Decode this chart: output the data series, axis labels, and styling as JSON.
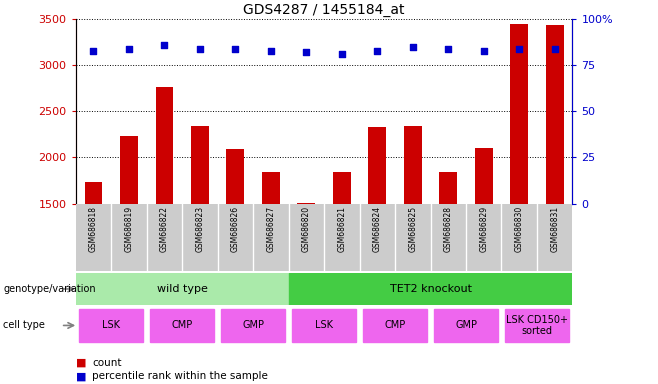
{
  "title": "GDS4287 / 1455184_at",
  "samples": [
    "GSM686818",
    "GSM686819",
    "GSM686822",
    "GSM686823",
    "GSM686826",
    "GSM686827",
    "GSM686820",
    "GSM686821",
    "GSM686824",
    "GSM686825",
    "GSM686828",
    "GSM686829",
    "GSM686830",
    "GSM686831"
  ],
  "counts": [
    1730,
    2230,
    2760,
    2340,
    2090,
    1840,
    1510,
    1840,
    2330,
    2340,
    1840,
    2100,
    3450,
    3440
  ],
  "percentile_ranks": [
    83,
    84,
    86,
    84,
    84,
    83,
    82,
    81,
    83,
    85,
    84,
    83,
    84,
    84
  ],
  "ylim_left": [
    1500,
    3500
  ],
  "ylim_right": [
    0,
    100
  ],
  "yticks_left": [
    1500,
    2000,
    2500,
    3000,
    3500
  ],
  "yticks_right": [
    0,
    25,
    50,
    75,
    100
  ],
  "yticklabels_right": [
    "0",
    "25",
    "50",
    "75",
    "100%"
  ],
  "bar_color": "#cc0000",
  "scatter_color": "#0000cc",
  "grid_color": "#000000",
  "title_fontsize": 10,
  "axis_color_left": "#cc0000",
  "axis_color_right": "#0000cc",
  "sample_band_color": "#cccccc",
  "genotype_groups": [
    {
      "label": "wild type",
      "start": 0,
      "end": 6,
      "color": "#aaeaaa"
    },
    {
      "label": "TET2 knockout",
      "start": 6,
      "end": 14,
      "color": "#44cc44"
    }
  ],
  "cell_type_groups": [
    {
      "label": "LSK",
      "start": 0,
      "end": 2
    },
    {
      "label": "CMP",
      "start": 2,
      "end": 4
    },
    {
      "label": "GMP",
      "start": 4,
      "end": 6
    },
    {
      "label": "LSK",
      "start": 6,
      "end": 8
    },
    {
      "label": "CMP",
      "start": 8,
      "end": 10
    },
    {
      "label": "GMP",
      "start": 10,
      "end": 12
    },
    {
      "label": "LSK CD150+\nsorted",
      "start": 12,
      "end": 14
    }
  ],
  "cell_type_color": "#ee66ee",
  "legend_bar_label": "count",
  "legend_scatter_label": "percentile rank within the sample",
  "bar_width": 0.5,
  "scatter_size": 18
}
